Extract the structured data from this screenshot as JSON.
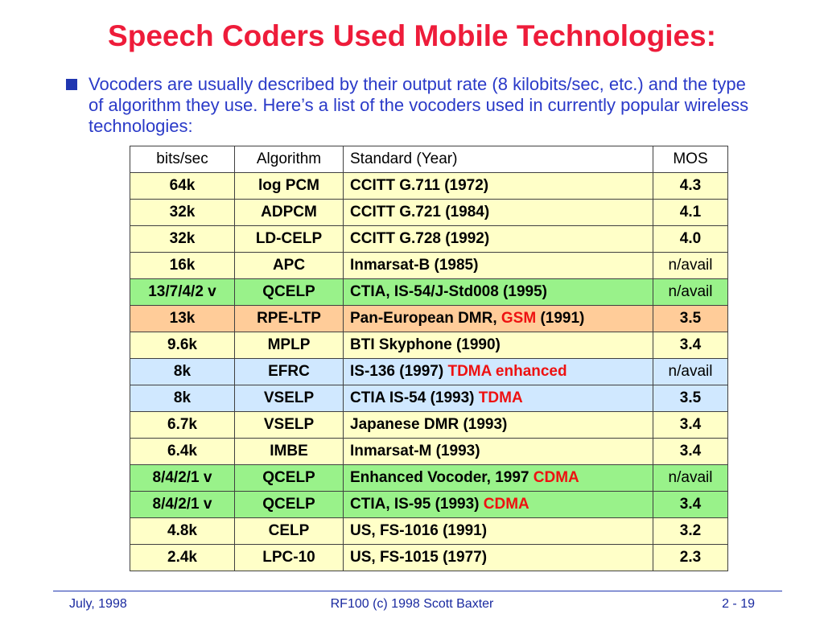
{
  "title": "Speech Coders Used Mobile Technologies:",
  "bullet": "Vocoders are usually described by their output rate (8 kilobits/sec, etc.) and the type of algorithm they use.  Here’s a list of the vocoders used in currently popular wireless technologies:",
  "colors": {
    "title": "#ee1c3a",
    "bullet_text": "#2a3ac8",
    "highlight": "#ee1111",
    "row_yellow": "#ffffc8",
    "row_green": "#99f28a",
    "row_orange": "#ffcc99",
    "row_blue": "#d0e8ff"
  },
  "table": {
    "headers": [
      "bits/sec",
      "Algorithm",
      "Standard (Year)",
      "MOS"
    ],
    "rows": [
      {
        "bits": "64k",
        "alg": "log PCM",
        "std": "CCITT G.711 (1972)",
        "std_hl": "",
        "std_after": "",
        "mos": "4.3",
        "tint": "yellow"
      },
      {
        "bits": "32k",
        "alg": "ADPCM",
        "std": "CCITT G.721 (1984)",
        "std_hl": "",
        "std_after": "",
        "mos": "4.1",
        "tint": "yellow"
      },
      {
        "bits": "32k",
        "alg": "LD-CELP",
        "std": "CCITT G.728 (1992)",
        "std_hl": "",
        "std_after": "",
        "mos": "4.0",
        "tint": "yellow"
      },
      {
        "bits": "16k",
        "alg": "APC",
        "std": "Inmarsat-B (1985)",
        "std_hl": "",
        "std_after": "",
        "mos": "n/avail",
        "tint": "yellow"
      },
      {
        "bits": "13/7/4/2 v",
        "alg": "QCELP",
        "std": "CTIA, IS-54/J-Std008 (1995)",
        "std_hl": "",
        "std_after": "",
        "mos": "n/avail",
        "tint": "green"
      },
      {
        "bits": "13k",
        "alg": "RPE-LTP",
        "std": "Pan-European DMR, ",
        "std_hl": "GSM",
        "std_after": " (1991)",
        "mos": "3.5",
        "tint": "orange"
      },
      {
        "bits": "9.6k",
        "alg": "MPLP",
        "std": "BTI Skyphone (1990)",
        "std_hl": "",
        "std_after": "",
        "mos": "3.4",
        "tint": "yellow"
      },
      {
        "bits": "8k",
        "alg": "EFRC",
        "std": "IS-136 (1997) ",
        "std_hl": "TDMA enhanced",
        "std_after": "",
        "mos": "n/avail",
        "tint": "blue"
      },
      {
        "bits": "8k",
        "alg": "VSELP",
        "std": "CTIA IS-54 (1993) ",
        "std_hl": "TDMA",
        "std_after": "",
        "mos": "3.5",
        "tint": "blue"
      },
      {
        "bits": "6.7k",
        "alg": "VSELP",
        "std": "Japanese DMR (1993)",
        "std_hl": "",
        "std_after": "",
        "mos": "3.4",
        "tint": "yellow"
      },
      {
        "bits": "6.4k",
        "alg": "IMBE",
        "std": "Inmarsat-M (1993)",
        "std_hl": "",
        "std_after": "",
        "mos": "3.4",
        "tint": "yellow"
      },
      {
        "bits": "8/4/2/1 v",
        "alg": "QCELP",
        "std": "Enhanced Vocoder, 1997 ",
        "std_hl": "CDMA",
        "std_after": "",
        "mos": "n/avail",
        "tint": "green"
      },
      {
        "bits": "8/4/2/1 v",
        "alg": "QCELP",
        "std": "CTIA, IS-95 (1993) ",
        "std_hl": "CDMA",
        "std_after": "",
        "mos": "3.4",
        "tint": "green"
      },
      {
        "bits": "4.8k",
        "alg": "CELP",
        "std": "US, FS-1016 (1991)",
        "std_hl": "",
        "std_after": "",
        "mos": "3.2",
        "tint": "yellow"
      },
      {
        "bits": "2.4k",
        "alg": "LPC-10",
        "std": "US, FS-1015 (1977)",
        "std_hl": "",
        "std_after": "",
        "mos": "2.3",
        "tint": "yellow"
      }
    ]
  },
  "footer": {
    "left": "July, 1998",
    "center": "RF100 (c) 1998 Scott Baxter",
    "right": "2 - 19"
  }
}
